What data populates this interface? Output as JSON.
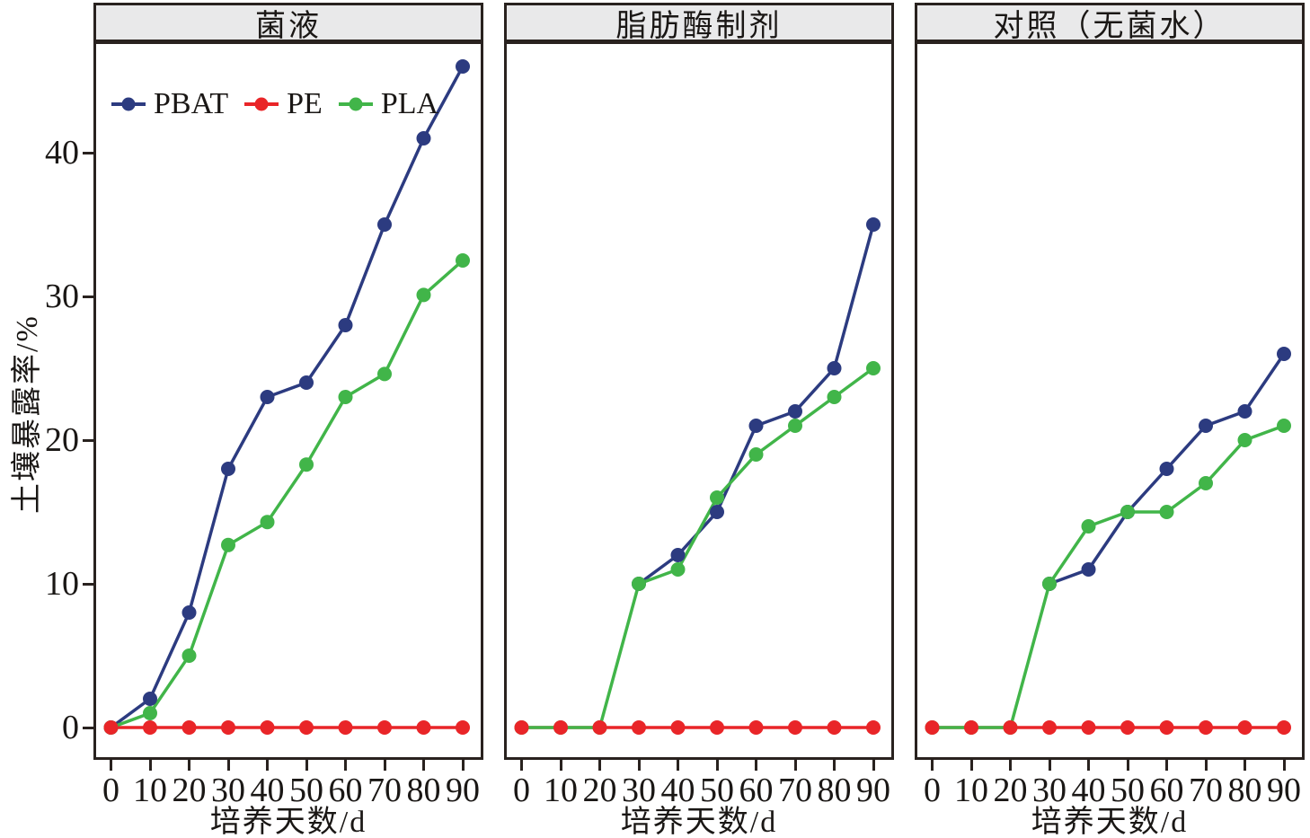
{
  "chart_data": {
    "type": "line",
    "x": [
      0,
      10,
      20,
      30,
      40,
      50,
      60,
      70,
      80,
      90
    ],
    "xlabel": "培养天数/d",
    "ylabel": "土壤暴露率/%",
    "yticks": [
      0,
      10,
      20,
      30,
      40
    ],
    "ylim": [
      -2,
      47.6
    ],
    "grid": false,
    "marker": "circle",
    "series_colors": {
      "PBAT": "#2c3b80",
      "PE": "#e92528",
      "PLA": "#41b549"
    },
    "legend": {
      "position": "top-left-of-first-panel",
      "items": [
        "PBAT",
        "PE",
        "PLA"
      ]
    },
    "panels": [
      {
        "title": "菌液",
        "series": [
          {
            "name": "PBAT",
            "values": [
              0,
              2,
              8,
              18,
              23,
              24,
              28,
              35,
              41,
              46
            ]
          },
          {
            "name": "PE",
            "values": [
              0,
              0,
              0,
              0,
              0,
              0,
              0,
              0,
              0,
              0
            ]
          },
          {
            "name": "PLA",
            "values": [
              0,
              1,
              5,
              12.7,
              14.3,
              18.3,
              23,
              24.6,
              30.1,
              32.5
            ]
          }
        ]
      },
      {
        "title": "脂肪酶制剂",
        "series": [
          {
            "name": "PBAT",
            "values": [
              null,
              null,
              null,
              10,
              12,
              15,
              21,
              22,
              25,
              35
            ]
          },
          {
            "name": "PE",
            "values": [
              0,
              0,
              0,
              0,
              0,
              0,
              0,
              0,
              0,
              0
            ]
          },
          {
            "name": "PLA",
            "values": [
              0,
              0,
              0,
              10,
              11,
              16,
              19,
              21,
              23,
              25
            ]
          }
        ]
      },
      {
        "title": "对照（无菌水）",
        "series": [
          {
            "name": "PBAT",
            "values": [
              null,
              null,
              null,
              10,
              11,
              15,
              18,
              21,
              22,
              26
            ]
          },
          {
            "name": "PE",
            "values": [
              0,
              0,
              0,
              0,
              0,
              0,
              0,
              0,
              0,
              0
            ]
          },
          {
            "name": "PLA",
            "values": [
              0,
              0,
              0,
              10,
              14,
              15,
              15,
              17,
              20,
              21
            ]
          }
        ]
      }
    ]
  }
}
